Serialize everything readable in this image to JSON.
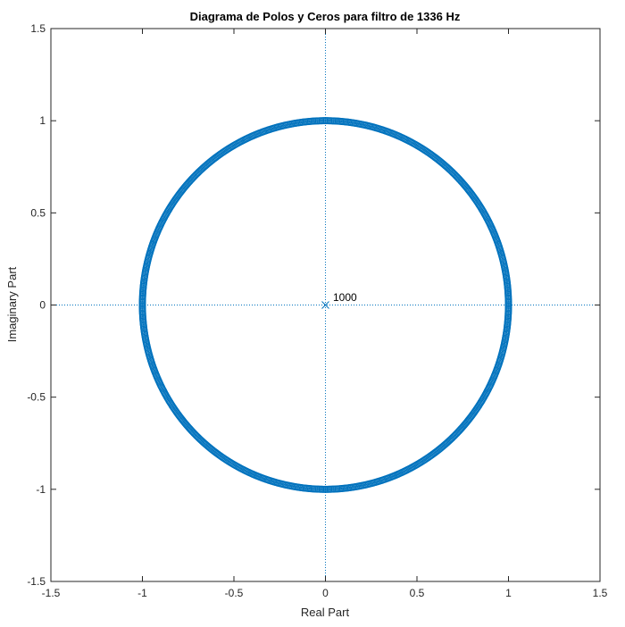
{
  "chart_data": {
    "type": "scatter",
    "title": "Diagrama de Polos y Ceros para filtro de 1336 Hz",
    "xlabel": "Real Part",
    "ylabel": "Imaginary Part",
    "xlim": [
      -1.5,
      1.5
    ],
    "ylim": [
      -1.5,
      1.5
    ],
    "xticks": [
      -1.5,
      -1,
      -0.5,
      0,
      0.5,
      1,
      1.5
    ],
    "yticks": [
      -1.5,
      -1,
      -0.5,
      0,
      0.5,
      1,
      1.5
    ],
    "xtick_labels": [
      "-1.5",
      "-1",
      "-0.5",
      "0",
      "0.5",
      "1",
      "1.5"
    ],
    "ytick_labels": [
      "-1.5",
      "-1",
      "-0.5",
      "0",
      "0.5",
      "1",
      "1.5"
    ],
    "grid": false,
    "reference_lines": [
      "x=0",
      "y=0"
    ],
    "series": [
      {
        "marker": "o",
        "color": "#0072BD",
        "description": "zeros distributed around the unit circle",
        "radius": 1.0,
        "count": 1000
      },
      {
        "marker": "x",
        "color": "#0072BD",
        "points": [
          [
            0,
            0
          ]
        ],
        "multiplicity_label": "1000"
      }
    ]
  }
}
